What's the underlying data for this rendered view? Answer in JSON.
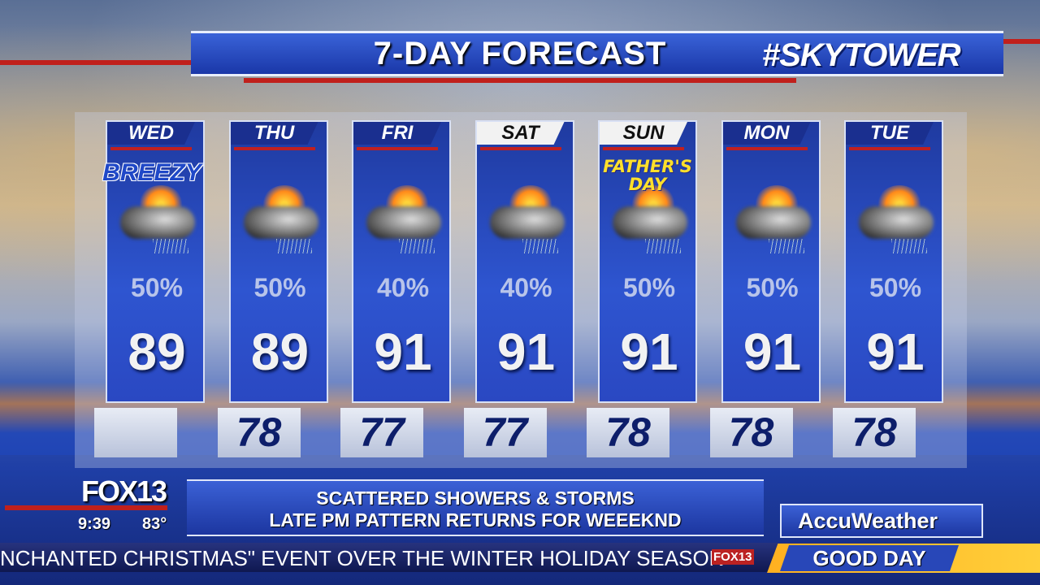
{
  "header": {
    "title": "7-DAY FORECAST",
    "brand": "#SKYTOWER"
  },
  "days": [
    {
      "day": "WED",
      "precip": "50%",
      "high": "89",
      "low": "",
      "badge": "BREEZY",
      "header_style": "dark",
      "icon": "thunderstorm-partly-sunny-icon"
    },
    {
      "day": "THU",
      "precip": "50%",
      "high": "89",
      "low": "78",
      "badge": "",
      "header_style": "dark",
      "icon": "thunderstorm-partly-sunny-icon"
    },
    {
      "day": "FRI",
      "precip": "40%",
      "high": "91",
      "low": "77",
      "badge": "",
      "header_style": "dark",
      "icon": "thunderstorm-partly-sunny-icon"
    },
    {
      "day": "SAT",
      "precip": "40%",
      "high": "91",
      "low": "77",
      "badge": "",
      "header_style": "light",
      "icon": "thunderstorm-partly-sunny-icon"
    },
    {
      "day": "SUN",
      "precip": "50%",
      "high": "91",
      "low": "78",
      "badge": "FATHER'S DAY",
      "header_style": "light",
      "icon": "thunderstorm-partly-sunny-icon"
    },
    {
      "day": "MON",
      "precip": "50%",
      "high": "91",
      "low": "78",
      "badge": "",
      "header_style": "dark",
      "icon": "thunderstorm-partly-sunny-icon"
    },
    {
      "day": "TUE",
      "precip": "50%",
      "high": "91",
      "low": "78",
      "badge": "",
      "header_style": "dark",
      "icon": "thunderstorm-partly-sunny-icon"
    }
  ],
  "lower_third": {
    "station": "FOX13",
    "time": "9:39",
    "temp": "83°",
    "line1": "SCATTERED SHOWERS & STORMS",
    "line2": "LATE PM PATTERN RETURNS FOR WEEEKND",
    "partner": "AccuWeather"
  },
  "ticker": {
    "text": "NCHANTED CHRISTMAS\" EVENT OVER THE WINTER HOLIDAY SEASON",
    "station": "FOX13",
    "show": "GOOD DAY"
  },
  "colors": {
    "panel_blue": "#2e55d0",
    "accent_red": "#c0201c",
    "show_yellow": "#ffc02a"
  }
}
